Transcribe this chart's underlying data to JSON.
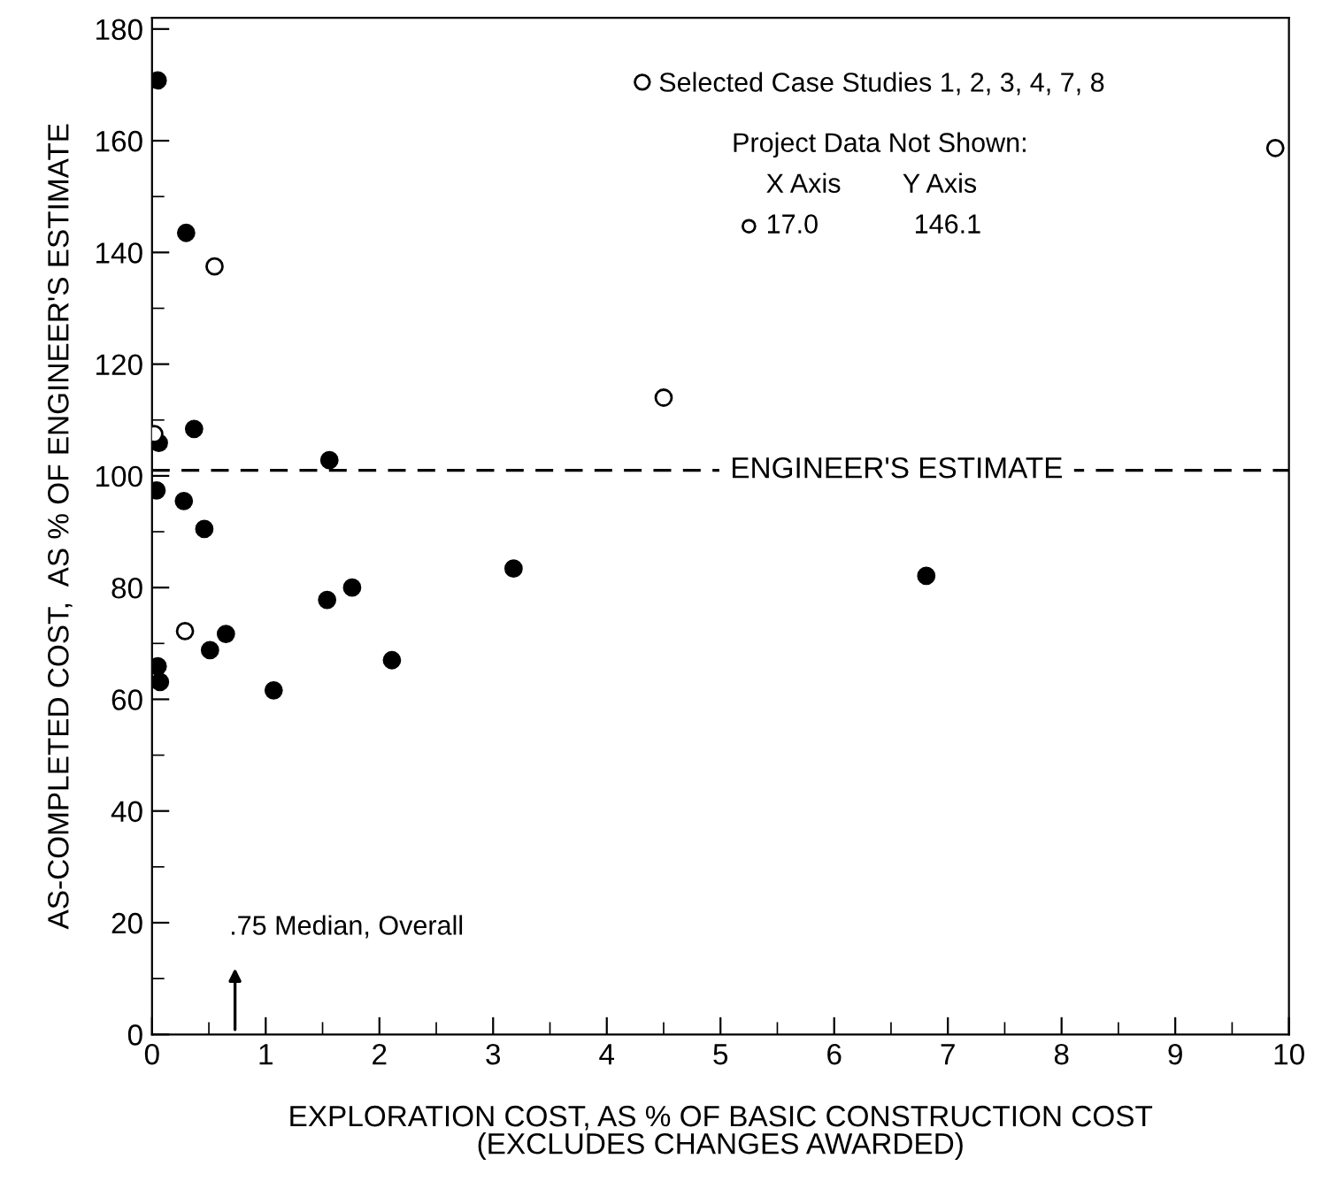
{
  "chart_data": {
    "type": "scatter",
    "xlabel": "EXPLORATION COST, AS % OF BASIC CONSTRUCTION COST\n(EXCLUDES CHANGES AWARDED)",
    "ylabel": "AS-COMPLETED COST,  AS % OF ENGINEER'S ESTIMATE",
    "xlim": [
      0,
      10
    ],
    "ylim": [
      0,
      182
    ],
    "xticks": [
      0,
      1,
      2,
      3,
      4,
      5,
      6,
      7,
      8,
      9,
      10
    ],
    "yticks": [
      0,
      20,
      40,
      60,
      80,
      100,
      120,
      140,
      160,
      180
    ],
    "grid": false,
    "legend": "top right",
    "series": [
      {
        "color": "#000000",
        "marker": "circle",
        "x": [
          0.05,
          0.3,
          0.06,
          0.37,
          1.56,
          0.04,
          0.28,
          0.46,
          3.18,
          1.54,
          1.76,
          0.51,
          0.65,
          2.11,
          0.05,
          0.07,
          1.07,
          6.81
        ],
        "values": [
          170.8,
          143.5,
          105.9,
          108.4,
          102.8,
          97.4,
          95.5,
          90.5,
          83.4,
          77.8,
          80,
          68.8,
          71.7,
          67,
          65.9,
          63.1,
          61.6,
          82.1
        ]
      },
      {
        "name": "Selected Case Studies 1, 2, 3, 4, 7, 8",
        "color": "#ffffff",
        "marker": "circle",
        "x": [
          0.55,
          0.02,
          0.29,
          4.5,
          9.88
        ],
        "values": [
          137.5,
          107.5,
          72.2,
          114,
          158.7
        ]
      }
    ],
    "ref_lines": [
      {
        "axis": "y",
        "value": 101,
        "label": "ENGINEER'S ESTIMATE",
        "line_style": "dashed",
        "color": "#000000"
      }
    ],
    "annotations": [
      ".75 Median, Overall",
      "Project Data Not Shown:",
      "X Axis",
      "Y Axis",
      "17.0",
      "146.1"
    ]
  }
}
